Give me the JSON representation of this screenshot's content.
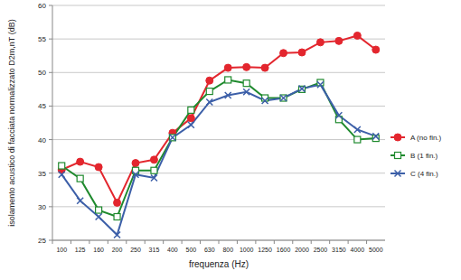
{
  "chart_data": {
    "type": "line",
    "y_label": "isolamento acustico di facciata normalizzato D2m,nT (dB)",
    "x_label": "frequenza (Hz)",
    "categories": [
      "100",
      "125",
      "160",
      "200",
      "250",
      "315",
      "400",
      "500",
      "630",
      "800",
      "1000",
      "1250",
      "1600",
      "2000",
      "2500",
      "3150",
      "4000",
      "5000"
    ],
    "series": [
      {
        "name": "A (no fin.)",
        "color": "#e3262e",
        "marker": "circle",
        "values": [
          35.5,
          36.7,
          35.9,
          30.6,
          36.5,
          37.0,
          41.0,
          43.2,
          48.8,
          50.7,
          50.8,
          50.7,
          52.9,
          53.0,
          54.5,
          54.7,
          55.5,
          53.4
        ]
      },
      {
        "name": "B (1 fin.)",
        "color": "#1f8a2e",
        "marker": "square",
        "values": [
          36.1,
          34.2,
          29.5,
          28.5,
          35.4,
          35.4,
          40.3,
          44.4,
          47.2,
          48.9,
          48.4,
          46.2,
          46.2,
          47.5,
          48.5,
          43.0,
          40.0,
          40.2
        ]
      },
      {
        "name": "C (4 fin.)",
        "color": "#3c5fa8",
        "marker": "x",
        "values": [
          34.8,
          30.9,
          28.5,
          25.8,
          34.8,
          34.3,
          40.3,
          42.2,
          45.6,
          46.6,
          47.1,
          45.8,
          46.2,
          47.6,
          48.2,
          43.6,
          41.5,
          40.5
        ]
      }
    ],
    "ylim": [
      25,
      60
    ],
    "yticks": [
      25,
      30,
      35,
      40,
      45,
      50,
      55,
      60
    ],
    "grid": true,
    "legend": "right"
  }
}
